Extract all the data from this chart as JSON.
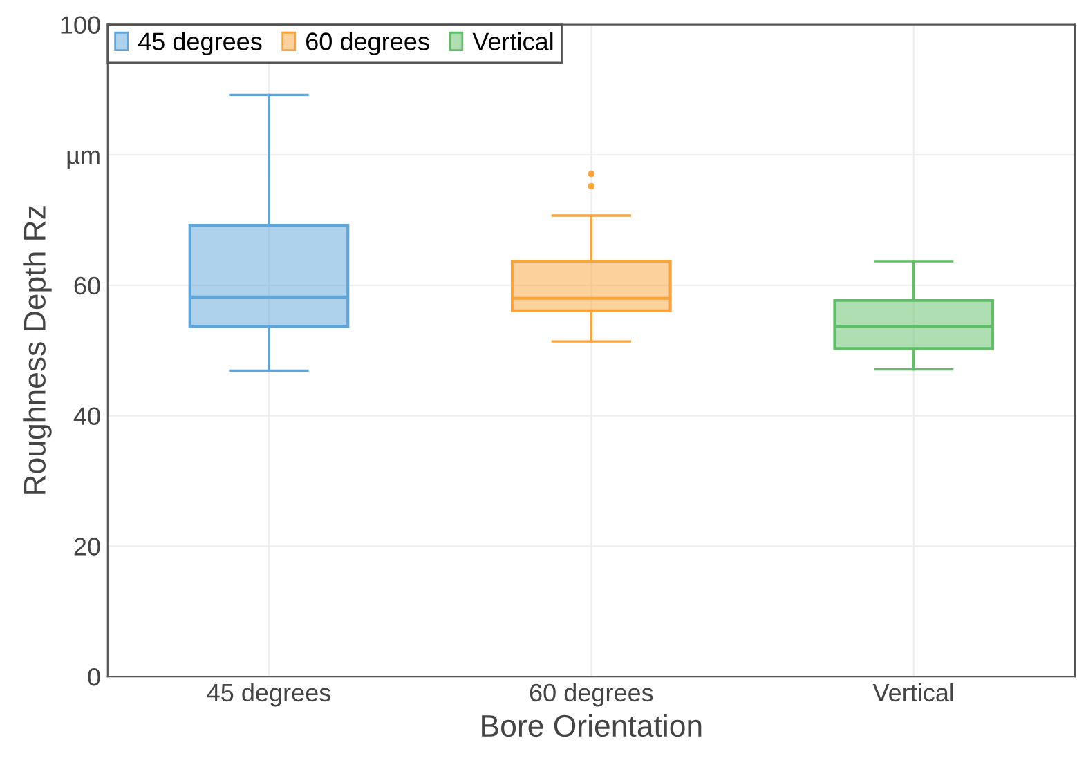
{
  "chart_data": {
    "type": "box",
    "xlabel": "Bore Orientation",
    "ylabel": "Roughness Depth Rz",
    "categories": [
      "45 degrees",
      "60 degrees",
      "Vertical"
    ],
    "series": [
      {
        "name": "45 degrees",
        "color": "#5da5da",
        "boxes": [
          {
            "low": 46.9,
            "q1": 53.7,
            "median": 58.2,
            "q3": 69.2,
            "high": 89.2
          },
          null,
          null
        ]
      },
      {
        "name": "60 degrees",
        "color": "#faa43a",
        "boxes": [
          null,
          {
            "low": 51.4,
            "q1": 56.1,
            "median": 58.0,
            "q3": 63.7,
            "high": 70.7,
            "outliers": [
              75.2,
              77.1
            ]
          },
          null
        ]
      },
      {
        "name": "Vertical",
        "color": "#60bd68",
        "boxes": [
          null,
          null,
          {
            "low": 47.1,
            "q1": 50.3,
            "median": 53.7,
            "q3": 57.7,
            "high": 63.7
          }
        ]
      }
    ],
    "ylim": [
      0,
      100
    ],
    "yticks": [
      0,
      20,
      40,
      60,
      {
        "value": 80,
        "label": "µm"
      },
      100
    ],
    "grid": true,
    "legend": "top left"
  }
}
